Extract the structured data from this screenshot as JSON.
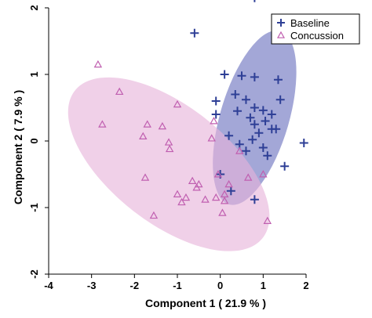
{
  "chart_data": {
    "type": "scatter",
    "title": "",
    "xlabel": "Component 1 ( 21.9 % )",
    "ylabel": "Component 2 ( 7.9 % )",
    "xlim": [
      -4,
      2
    ],
    "ylim": [
      -2,
      2
    ],
    "xticks": [
      "-4",
      "-3",
      "-2",
      "-1",
      "0",
      "1",
      "2"
    ],
    "yticks": [
      "-2",
      "-1",
      "0",
      "1",
      "2"
    ],
    "grid": false,
    "legend_position": "top-right",
    "series": [
      {
        "name": "Baseline",
        "marker": "plus",
        "color": "#2e3f96",
        "ellipse_fill": "#7f85c7",
        "ellipse": {
          "cx": 0.8,
          "cy": 0.35,
          "rx": 1.45,
          "ry": 0.75,
          "angle_deg": 60
        },
        "points": [
          [
            0.8,
            2.15
          ],
          [
            -0.6,
            1.62
          ],
          [
            0.1,
            1.0
          ],
          [
            0.5,
            0.98
          ],
          [
            0.8,
            0.96
          ],
          [
            1.35,
            0.92
          ],
          [
            0.35,
            0.7
          ],
          [
            0.6,
            0.62
          ],
          [
            -0.1,
            0.6
          ],
          [
            1.4,
            0.62
          ],
          [
            0.8,
            0.5
          ],
          [
            1.0,
            0.46
          ],
          [
            0.4,
            0.45
          ],
          [
            1.2,
            0.4
          ],
          [
            0.7,
            0.35
          ],
          [
            1.05,
            0.3
          ],
          [
            -0.1,
            0.4
          ],
          [
            0.8,
            0.25
          ],
          [
            1.2,
            0.18
          ],
          [
            0.9,
            0.12
          ],
          [
            1.3,
            0.18
          ],
          [
            0.2,
            0.08
          ],
          [
            0.75,
            0.02
          ],
          [
            1.95,
            -0.03
          ],
          [
            0.45,
            -0.05
          ],
          [
            1.0,
            -0.1
          ],
          [
            0.6,
            -0.15
          ],
          [
            1.1,
            -0.22
          ],
          [
            1.5,
            -0.38
          ],
          [
            0.0,
            -0.5
          ],
          [
            0.25,
            -0.75
          ],
          [
            0.8,
            -0.88
          ]
        ]
      },
      {
        "name": "Concussion",
        "marker": "triangle",
        "color": "#c05fb0",
        "ellipse_fill": "#e7b3da",
        "ellipse": {
          "cx": -1.2,
          "cy": -0.35,
          "rx": 2.5,
          "ry": 0.98,
          "angle_deg": -22
        },
        "points": [
          [
            -2.85,
            1.15
          ],
          [
            -2.35,
            0.74
          ],
          [
            -1.0,
            0.55
          ],
          [
            -2.75,
            0.25
          ],
          [
            -1.7,
            0.25
          ],
          [
            -1.35,
            0.22
          ],
          [
            -0.15,
            0.3
          ],
          [
            -1.8,
            0.07
          ],
          [
            -1.2,
            -0.02
          ],
          [
            -1.18,
            -0.12
          ],
          [
            -0.2,
            0.04
          ],
          [
            0.45,
            -0.15
          ],
          [
            -0.05,
            -0.5
          ],
          [
            0.65,
            -0.55
          ],
          [
            1.0,
            -0.5
          ],
          [
            -1.75,
            -0.55
          ],
          [
            0.2,
            -0.65
          ],
          [
            -0.65,
            -0.6
          ],
          [
            -0.55,
            -0.7
          ],
          [
            -0.5,
            -0.65
          ],
          [
            0.1,
            -0.8
          ],
          [
            -1.0,
            -0.8
          ],
          [
            -0.9,
            -0.92
          ],
          [
            -0.8,
            -0.85
          ],
          [
            -0.35,
            -0.88
          ],
          [
            -0.1,
            -0.85
          ],
          [
            0.05,
            -1.08
          ],
          [
            -1.55,
            -1.12
          ],
          [
            1.1,
            -1.2
          ],
          [
            0.1,
            -0.9
          ]
        ]
      }
    ]
  }
}
